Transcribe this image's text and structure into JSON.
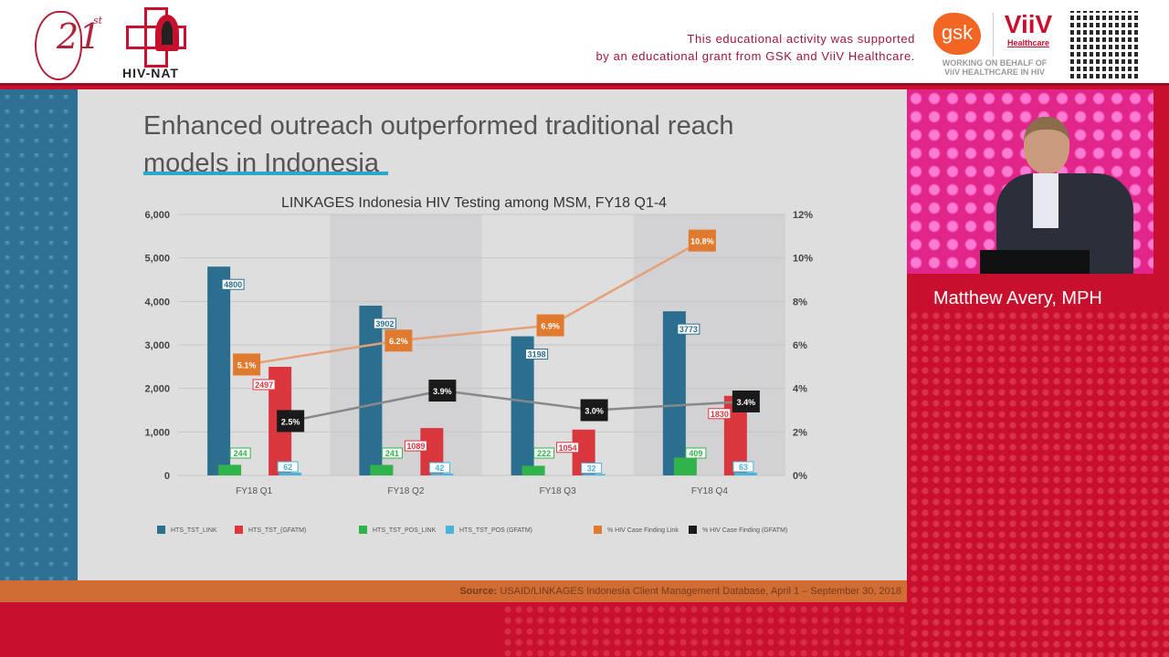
{
  "header": {
    "conference_logo": "21st",
    "org_logo": "HIV-NAT",
    "support_line1": "This educational activity was supported",
    "support_line2": "by an educational grant from GSK and ViiV Healthcare.",
    "gsk_logo": "gsk",
    "viiv_logo": "ViiV",
    "viiv_sub": "Healthcare",
    "working_line1": "WORKING ON BEHALF OF",
    "working_line2": "ViiV HEALTHCARE IN HIV"
  },
  "slide": {
    "title_line1": "Enhanced outreach outperformed traditional reach",
    "title_line2": "models in Indonesia",
    "source_label": "Source:",
    "source_text": " USAID/LINKAGES Indonesia Client Management Database, April 1 – September 30, 2018"
  },
  "speaker": {
    "name": "Matthew Avery, MPH"
  },
  "colors": {
    "link": "#2c6e8e",
    "gfatm": "#d9363e",
    "pos_link": "#2fb34a",
    "pos_gfatm": "#4ab4d8",
    "pct_link": "#e07a2e",
    "pct_gfatm": "#1a1a1a"
  },
  "chart_data": {
    "type": "bar",
    "title": "LINKAGES Indonesia HIV Testing among MSM, FY18 Q1-4",
    "categories": [
      "FY18 Q1",
      "FY18 Q2",
      "FY18 Q3",
      "FY18 Q4"
    ],
    "ylim": [
      0,
      6000
    ],
    "yticks": [
      "0",
      "1,000",
      "2,000",
      "3,000",
      "4,000",
      "5,000",
      "6,000"
    ],
    "y2lim": [
      0,
      12
    ],
    "y2ticks": [
      "0%",
      "2%",
      "4%",
      "6%",
      "8%",
      "10%",
      "12%"
    ],
    "series": [
      {
        "name": "HTS_TST_LINK",
        "kind": "bar",
        "axis": "left",
        "values": [
          4800,
          3902,
          3198,
          3773
        ],
        "labels": [
          "4800",
          "3902",
          "3198",
          "3773"
        ]
      },
      {
        "name": "HTS_TST_(GFATM)",
        "kind": "bar",
        "axis": "left",
        "values": [
          2497,
          1089,
          1054,
          1830
        ],
        "labels": [
          "2497",
          "1089",
          "1054",
          "1830"
        ]
      },
      {
        "name": "HTS_TST_POS_LINK",
        "kind": "bar",
        "axis": "left",
        "values": [
          244,
          241,
          222,
          409
        ],
        "labels": [
          "244",
          "241",
          "222",
          "409"
        ]
      },
      {
        "name": "HTS_TST_POS (GFATM)",
        "kind": "bar",
        "axis": "left",
        "values": [
          62,
          42,
          32,
          63
        ],
        "labels": [
          "62",
          "42",
          "32",
          "63"
        ]
      },
      {
        "name": "% HIV Case Finding Link",
        "kind": "line",
        "axis": "right",
        "values": [
          5.1,
          6.2,
          6.9,
          10.8
        ],
        "labels": [
          "5.1%",
          "6.2%",
          "6.9%",
          "10.8%"
        ]
      },
      {
        "name": "% HIV Case Finding (GFATM)",
        "kind": "line",
        "axis": "right",
        "values": [
          2.5,
          3.9,
          3.0,
          3.4
        ],
        "labels": [
          "2.5%",
          "3.9%",
          "3.0%",
          "3.4%"
        ]
      }
    ],
    "legend": "bottom",
    "grid": true
  }
}
